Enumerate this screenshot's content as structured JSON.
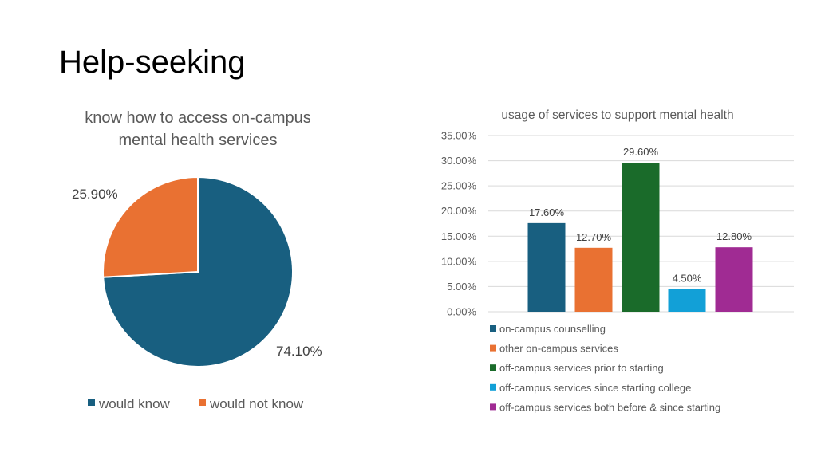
{
  "slide": {
    "title": "Help-seeking"
  },
  "chart_data": [
    {
      "type": "pie",
      "title": "know how to access on-campus mental health services",
      "title_lines": [
        "know how to access on-campus",
        "mental health services"
      ],
      "categories": [
        "would know",
        "would not know"
      ],
      "values": [
        74.1,
        25.9
      ],
      "data_labels": [
        "74.10%",
        "25.90%"
      ],
      "colors": [
        "#185F80",
        "#E97132"
      ],
      "legend": "bottom"
    },
    {
      "type": "bar",
      "title": "usage of services to support mental health",
      "categories": [
        "on-campus counselling",
        "other on-campus services",
        "off-campus services prior to starting",
        "off-campus services since starting college",
        "off-campus services both before & since starting"
      ],
      "values": [
        17.6,
        12.7,
        29.6,
        4.5,
        12.8
      ],
      "data_labels": [
        "17.60%",
        "12.70%",
        "29.60%",
        "4.50%",
        "12.80%"
      ],
      "colors": [
        "#185F80",
        "#E97132",
        "#1A6B2A",
        "#12A0D7",
        "#A02B93"
      ],
      "ylim": [
        0,
        35
      ],
      "yticks": [
        0,
        5,
        10,
        15,
        20,
        25,
        30,
        35
      ],
      "ytick_labels": [
        "0.00%",
        "5.00%",
        "10.00%",
        "15.00%",
        "20.00%",
        "25.00%",
        "30.00%",
        "35.00%"
      ],
      "xlabel": "",
      "ylabel": "",
      "grid": true,
      "legend": "bottom"
    }
  ]
}
